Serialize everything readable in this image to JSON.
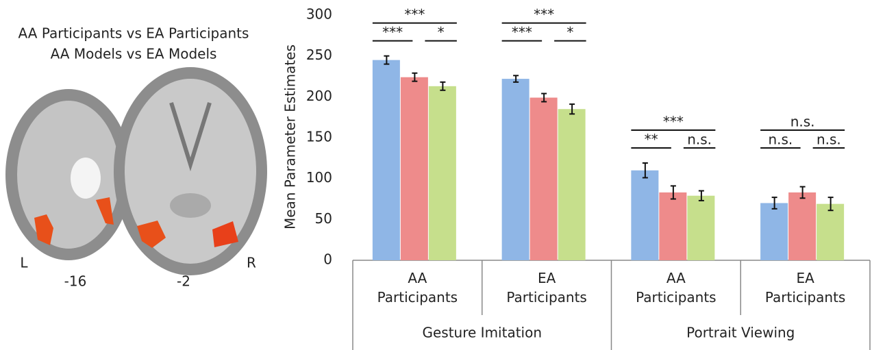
{
  "panel_left": {
    "title_lines": [
      "AA Participants vs EA Participants",
      "AA Models vs EA Models"
    ],
    "left_label": "L",
    "right_label": "R",
    "slice_labels": [
      "-16",
      "-2"
    ]
  },
  "chart_data": {
    "type": "bar",
    "y_label": "Mean Parameter Estimates",
    "categories": [
      "AA Participants",
      "EA Participants",
      "AA Participants",
      "EA Participants"
    ],
    "groups": [
      {
        "label": "Gesture Imitation",
        "size": 2
      },
      {
        "label": "Portrait Viewing",
        "size": 2
      }
    ],
    "series": [
      {
        "color": "#8fb6e6",
        "values": [
          245,
          222,
          110,
          70
        ],
        "errors": [
          5,
          4,
          9,
          7
        ]
      },
      {
        "color": "#ee8b8b",
        "values": [
          224,
          199,
          83,
          83
        ],
        "errors": [
          5,
          5,
          8,
          7
        ]
      },
      {
        "color": "#c6df8c",
        "values": [
          213,
          185,
          79,
          69
        ],
        "errors": [
          5,
          6,
          6,
          8
        ]
      }
    ],
    "significance": [
      [
        "***",
        "***",
        "*"
      ],
      [
        "***",
        "***",
        "*"
      ],
      [
        "***",
        "**",
        "n.s."
      ],
      [
        "n.s.",
        "n.s.",
        "n.s."
      ]
    ],
    "ylim": [
      0,
      300
    ],
    "yticks": [
      0,
      50,
      100,
      150,
      200,
      250,
      300
    ]
  }
}
